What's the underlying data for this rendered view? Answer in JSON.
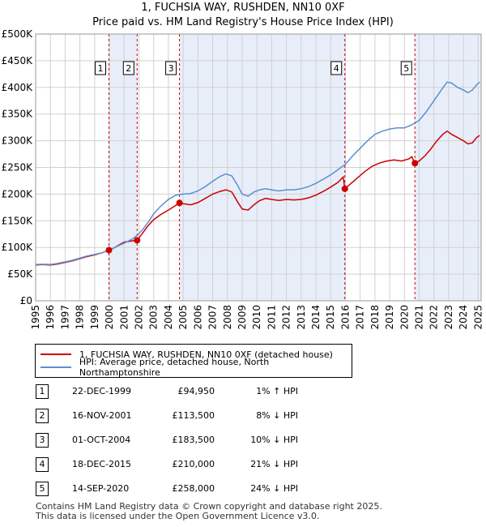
{
  "chart_data": {
    "type": "line",
    "title": "1, FUCHSIA WAY, RUSHDEN, NN10 0XF",
    "subtitle": "Price paid vs. HM Land Registry's House Price Index (HPI)",
    "x_range": [
      1995,
      2025.2
    ],
    "ylim": [
      0,
      500000
    ],
    "y_ticks": [
      {
        "value": 0,
        "label": "£0"
      },
      {
        "value": 50000,
        "label": "£50K"
      },
      {
        "value": 100000,
        "label": "£100K"
      },
      {
        "value": 150000,
        "label": "£150K"
      },
      {
        "value": 200000,
        "label": "£200K"
      },
      {
        "value": 250000,
        "label": "£250K"
      },
      {
        "value": 300000,
        "label": "£300K"
      },
      {
        "value": 350000,
        "label": "£350K"
      },
      {
        "value": 400000,
        "label": "£400K"
      },
      {
        "value": 450000,
        "label": "£450K"
      },
      {
        "value": 500000,
        "label": "£500K"
      }
    ],
    "x_ticks": [
      "1995",
      "1996",
      "1997",
      "1998",
      "1999",
      "2000",
      "2001",
      "2002",
      "2003",
      "2004",
      "2005",
      "2006",
      "2007",
      "2008",
      "2009",
      "2010",
      "2011",
      "2012",
      "2013",
      "2014",
      "2015",
      "2016",
      "2017",
      "2018",
      "2019",
      "2020",
      "2021",
      "2022",
      "2023",
      "2024",
      "2025"
    ],
    "series": [
      {
        "name": "1, FUCHSIA WAY, RUSHDEN, NN10 0XF (detached house)",
        "color": "#cc0000",
        "points": [
          [
            1995.0,
            67000
          ],
          [
            1995.5,
            68000
          ],
          [
            1996.0,
            67000
          ],
          [
            1996.5,
            69000
          ],
          [
            1997.0,
            72000
          ],
          [
            1997.5,
            75000
          ],
          [
            1998.0,
            79000
          ],
          [
            1998.5,
            83000
          ],
          [
            1999.0,
            86000
          ],
          [
            1999.5,
            90000
          ],
          [
            1999.97,
            94950
          ],
          [
            2000.3,
            99000
          ],
          [
            2000.6,
            104000
          ],
          [
            2001.0,
            110000
          ],
          [
            2001.5,
            112000
          ],
          [
            2001.88,
            113500
          ],
          [
            2002.2,
            125000
          ],
          [
            2002.6,
            140000
          ],
          [
            2003.0,
            152000
          ],
          [
            2003.5,
            162000
          ],
          [
            2004.0,
            170000
          ],
          [
            2004.4,
            177000
          ],
          [
            2004.75,
            183500
          ],
          [
            2005.0,
            182000
          ],
          [
            2005.5,
            180000
          ],
          [
            2006.0,
            184000
          ],
          [
            2006.5,
            192000
          ],
          [
            2007.0,
            200000
          ],
          [
            2007.5,
            205000
          ],
          [
            2007.9,
            208000
          ],
          [
            2008.3,
            204000
          ],
          [
            2008.7,
            185000
          ],
          [
            2009.0,
            172000
          ],
          [
            2009.4,
            170000
          ],
          [
            2009.8,
            180000
          ],
          [
            2010.2,
            188000
          ],
          [
            2010.6,
            192000
          ],
          [
            2011.0,
            190000
          ],
          [
            2011.5,
            188000
          ],
          [
            2012.0,
            190000
          ],
          [
            2012.5,
            189000
          ],
          [
            2013.0,
            190000
          ],
          [
            2013.5,
            193000
          ],
          [
            2014.0,
            198000
          ],
          [
            2014.5,
            205000
          ],
          [
            2015.0,
            213000
          ],
          [
            2015.5,
            222000
          ],
          [
            2015.85,
            232000
          ],
          [
            2015.96,
            210000
          ],
          [
            2016.3,
            218000
          ],
          [
            2016.8,
            230000
          ],
          [
            2017.3,
            242000
          ],
          [
            2017.8,
            252000
          ],
          [
            2018.3,
            258000
          ],
          [
            2018.8,
            262000
          ],
          [
            2019.3,
            264000
          ],
          [
            2019.8,
            262000
          ],
          [
            2020.3,
            266000
          ],
          [
            2020.5,
            270000
          ],
          [
            2020.71,
            258000
          ],
          [
            2021.0,
            262000
          ],
          [
            2021.4,
            272000
          ],
          [
            2021.8,
            285000
          ],
          [
            2022.2,
            300000
          ],
          [
            2022.6,
            312000
          ],
          [
            2022.9,
            318000
          ],
          [
            2023.2,
            312000
          ],
          [
            2023.6,
            306000
          ],
          [
            2024.0,
            300000
          ],
          [
            2024.3,
            294000
          ],
          [
            2024.6,
            296000
          ],
          [
            2024.9,
            306000
          ],
          [
            2025.1,
            310000
          ]
        ]
      },
      {
        "name": "HPI: Average price, detached house, North Northamptonshire",
        "color": "#5b8fd1",
        "points": [
          [
            1995.0,
            68000
          ],
          [
            1995.5,
            68500
          ],
          [
            1996.0,
            68000
          ],
          [
            1996.5,
            70000
          ],
          [
            1997.0,
            73000
          ],
          [
            1997.5,
            76000
          ],
          [
            1998.0,
            80000
          ],
          [
            1998.5,
            84000
          ],
          [
            1999.0,
            87000
          ],
          [
            1999.5,
            90000
          ],
          [
            2000.0,
            95000
          ],
          [
            2000.5,
            102000
          ],
          [
            2001.0,
            108000
          ],
          [
            2001.5,
            115000
          ],
          [
            2001.9,
            123000
          ],
          [
            2002.3,
            135000
          ],
          [
            2002.7,
            150000
          ],
          [
            2003.0,
            163000
          ],
          [
            2003.5,
            178000
          ],
          [
            2004.0,
            190000
          ],
          [
            2004.5,
            198000
          ],
          [
            2005.0,
            200000
          ],
          [
            2005.5,
            201000
          ],
          [
            2006.0,
            206000
          ],
          [
            2006.5,
            214000
          ],
          [
            2007.0,
            224000
          ],
          [
            2007.5,
            233000
          ],
          [
            2007.9,
            238000
          ],
          [
            2008.3,
            234000
          ],
          [
            2008.7,
            216000
          ],
          [
            2009.0,
            200000
          ],
          [
            2009.4,
            196000
          ],
          [
            2009.8,
            204000
          ],
          [
            2010.2,
            208000
          ],
          [
            2010.6,
            210000
          ],
          [
            2011.0,
            208000
          ],
          [
            2011.5,
            206000
          ],
          [
            2012.0,
            208000
          ],
          [
            2012.5,
            208000
          ],
          [
            2013.0,
            210000
          ],
          [
            2013.5,
            214000
          ],
          [
            2014.0,
            220000
          ],
          [
            2014.5,
            228000
          ],
          [
            2015.0,
            236000
          ],
          [
            2015.5,
            246000
          ],
          [
            2016.0,
            256000
          ],
          [
            2016.5,
            272000
          ],
          [
            2017.0,
            286000
          ],
          [
            2017.5,
            300000
          ],
          [
            2018.0,
            312000
          ],
          [
            2018.5,
            318000
          ],
          [
            2019.0,
            322000
          ],
          [
            2019.5,
            324000
          ],
          [
            2020.0,
            324000
          ],
          [
            2020.5,
            330000
          ],
          [
            2021.0,
            338000
          ],
          [
            2021.5,
            355000
          ],
          [
            2022.0,
            375000
          ],
          [
            2022.5,
            395000
          ],
          [
            2022.9,
            410000
          ],
          [
            2023.2,
            408000
          ],
          [
            2023.6,
            400000
          ],
          [
            2024.0,
            395000
          ],
          [
            2024.3,
            390000
          ],
          [
            2024.6,
            395000
          ],
          [
            2024.9,
            405000
          ],
          [
            2025.1,
            410000
          ]
        ]
      }
    ],
    "sales": [
      {
        "n": "1",
        "date": "22-DEC-1999",
        "x": 1999.97,
        "price": 94950,
        "price_label": "£94,950",
        "hpi": "1% ↑ HPI"
      },
      {
        "n": "2",
        "date": "16-NOV-2001",
        "x": 2001.88,
        "price": 113500,
        "price_label": "£113,500",
        "hpi": "8% ↓ HPI"
      },
      {
        "n": "3",
        "date": "01-OCT-2004",
        "x": 2004.75,
        "price": 183500,
        "price_label": "£183,500",
        "hpi": "10% ↓ HPI"
      },
      {
        "n": "4",
        "date": "18-DEC-2015",
        "x": 2015.96,
        "price": 210000,
        "price_label": "£210,000",
        "hpi": "21% ↓ HPI"
      },
      {
        "n": "5",
        "date": "14-SEP-2020",
        "x": 2020.71,
        "price": 258000,
        "price_label": "£258,000",
        "hpi": "24% ↓ HPI"
      }
    ],
    "shaded_ranges": [
      [
        1999.97,
        2001.88
      ],
      [
        2004.75,
        2015.96
      ],
      [
        2020.71,
        2025.2
      ]
    ],
    "colors": {
      "shade": "#e8eef9",
      "grid": "#d0d0d0",
      "marker_line": "#cc0000"
    }
  },
  "legend": {
    "property_label": "1, FUCHSIA WAY, RUSHDEN, NN10 0XF (detached house)",
    "hpi_label": "HPI: Average price, detached house, North Northamptonshire"
  },
  "footer": {
    "line1": "Contains HM Land Registry data © Crown copyright and database right 2025.",
    "line2": "This data is licensed under the Open Government Licence v3.0."
  }
}
